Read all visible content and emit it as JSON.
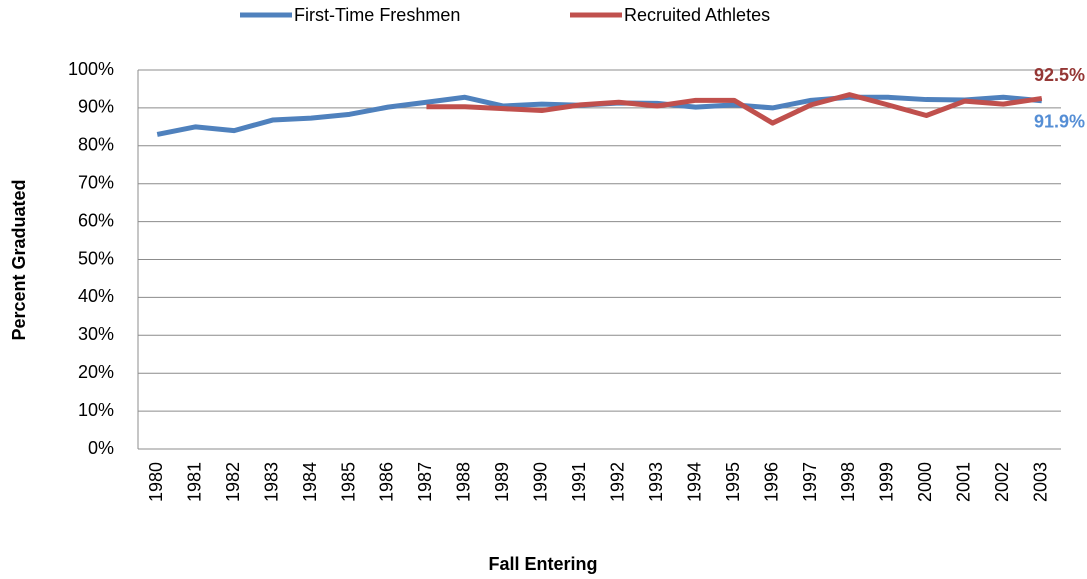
{
  "chart_data": {
    "type": "line",
    "x_label": "Fall Entering",
    "y_label": "Percent Graduated",
    "categories": [
      "1980",
      "1981",
      "1982",
      "1983",
      "1984",
      "1985",
      "1986",
      "1987",
      "1988",
      "1989",
      "1990",
      "1991",
      "1992",
      "1993",
      "1994",
      "1995",
      "1996",
      "1997",
      "1998",
      "1999",
      "2000",
      "2001",
      "2002",
      "2003"
    ],
    "series": [
      {
        "name": "First-Time Freshmen",
        "color": "#4f81bd",
        "label_color": "#558ed5",
        "values": [
          83,
          85,
          84,
          86.8,
          87.3,
          88.3,
          90.2,
          91.5,
          92.8,
          90.5,
          91,
          90.7,
          91.3,
          91.2,
          90.2,
          90.8,
          90,
          92,
          92.8,
          92.8,
          92.2,
          92.1,
          92.8,
          91.9
        ],
        "value_labels": [
          null,
          null,
          null,
          null,
          null,
          null,
          null,
          null,
          null,
          null,
          null,
          null,
          null,
          null,
          null,
          null,
          null,
          null,
          null,
          null,
          null,
          null,
          null,
          "91.9%"
        ]
      },
      {
        "name": "Recruited Athletes",
        "color": "#c0504d",
        "label_color": "#953735",
        "values": [
          null,
          null,
          null,
          null,
          null,
          null,
          null,
          90.3,
          90.3,
          89.8,
          89.3,
          90.8,
          91.5,
          90.5,
          92,
          92,
          86,
          90.8,
          93.5,
          90.8,
          88,
          91.8,
          91,
          92.5
        ],
        "value_labels": [
          null,
          null,
          null,
          null,
          null,
          null,
          null,
          null,
          null,
          null,
          null,
          null,
          null,
          null,
          null,
          null,
          null,
          null,
          null,
          null,
          null,
          null,
          null,
          "92.5%"
        ]
      }
    ],
    "ylim": [
      0,
      100
    ],
    "yticks": [
      {
        "value": 0,
        "label": "0%"
      },
      {
        "value": 10,
        "label": "10%"
      },
      {
        "value": 20,
        "label": "20%"
      },
      {
        "value": 30,
        "label": "30%"
      },
      {
        "value": 40,
        "label": "40%"
      },
      {
        "value": 50,
        "label": "50%"
      },
      {
        "value": 60,
        "label": "60%"
      },
      {
        "value": 70,
        "label": "70%"
      },
      {
        "value": 80,
        "label": "80%"
      },
      {
        "value": 90,
        "label": "90%"
      },
      {
        "value": 100,
        "label": "100%"
      }
    ],
    "grid": true,
    "legend": "top"
  }
}
